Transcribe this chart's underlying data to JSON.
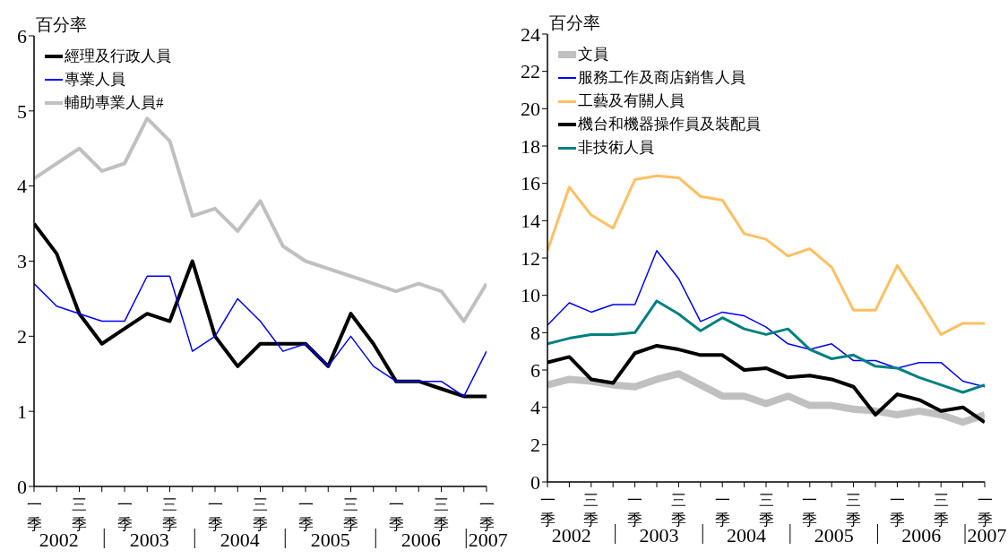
{
  "chart_data": [
    {
      "type": "line",
      "ylabel": "百分率",
      "legend": "top left",
      "ylim": [
        0,
        6
      ],
      "yticks": [
        0,
        1,
        2,
        3,
        4,
        5,
        6
      ],
      "categories": [
        "一季",
        null,
        "三季",
        null,
        "一季",
        null,
        "三季",
        null,
        "一季",
        null,
        "三季",
        null,
        "一季",
        null,
        "三季",
        null,
        "一季",
        null,
        "三季",
        null,
        "一季"
      ],
      "annotations": [
        "2002",
        "2003",
        "2004",
        "2005",
        "2006",
        "2007"
      ],
      "series": [
        {
          "name": "經理及行政人員",
          "color": "#000000",
          "values": [
            3.5,
            3.1,
            2.3,
            1.9,
            2.1,
            2.3,
            2.2,
            3.0,
            2.0,
            1.6,
            1.9,
            1.9,
            1.9,
            1.6,
            2.3,
            1.9,
            1.4,
            1.4,
            1.3,
            1.2,
            1.2
          ]
        },
        {
          "name": "專業人員",
          "color": "#0000ff",
          "values": [
            2.7,
            2.4,
            2.3,
            2.2,
            2.2,
            2.8,
            2.8,
            1.8,
            2.0,
            2.5,
            2.2,
            1.8,
            1.9,
            1.6,
            2.0,
            1.6,
            1.4,
            1.4,
            1.4,
            1.2,
            1.8
          ]
        },
        {
          "name": "輔助專業人員#",
          "color": "#c0c0c0",
          "values": [
            4.1,
            4.3,
            4.5,
            4.2,
            4.3,
            4.9,
            4.6,
            3.6,
            3.7,
            3.4,
            3.8,
            3.2,
            3.0,
            2.9,
            2.8,
            2.7,
            2.6,
            2.7,
            2.6,
            2.2,
            2.7
          ]
        }
      ]
    },
    {
      "type": "line",
      "ylabel": "百分率",
      "legend": "top left",
      "ylim": [
        0,
        24
      ],
      "yticks": [
        0,
        2,
        4,
        6,
        8,
        10,
        12,
        14,
        16,
        18,
        20,
        22,
        24
      ],
      "categories": [
        "一季",
        null,
        "三季",
        null,
        "一季",
        null,
        "三季",
        null,
        "一季",
        null,
        "三季",
        null,
        "一季",
        null,
        "三季",
        null,
        "一季",
        null,
        "三季",
        null,
        "一季"
      ],
      "annotations": [
        "2002",
        "2003",
        "2004",
        "2005",
        "2006",
        "2007"
      ],
      "series": [
        {
          "name": "文員",
          "color": "#c0c0c0",
          "values": [
            5.2,
            5.5,
            5.4,
            5.2,
            5.1,
            5.5,
            5.8,
            5.2,
            4.6,
            4.6,
            4.2,
            4.6,
            4.1,
            4.1,
            3.9,
            3.8,
            3.6,
            3.8,
            3.6,
            3.2,
            3.6
          ]
        },
        {
          "name": "服務工作及商店銷售人員",
          "color": "#0000ff",
          "values": [
            8.4,
            9.6,
            9.1,
            9.5,
            9.5,
            12.4,
            10.9,
            8.6,
            9.1,
            8.9,
            8.3,
            7.4,
            7.1,
            7.4,
            6.5,
            6.5,
            6.1,
            6.4,
            6.4,
            5.4,
            5.1
          ]
        },
        {
          "name": "工藝及有關人員",
          "color": "#ffbf60",
          "values": [
            12.4,
            15.8,
            14.3,
            13.6,
            16.2,
            16.4,
            16.3,
            15.3,
            15.1,
            13.3,
            13.0,
            12.1,
            12.5,
            11.5,
            9.2,
            9.2,
            11.6,
            9.8,
            7.9,
            8.5,
            8.5
          ]
        },
        {
          "name": "機台和機器操作員及裝配員",
          "color": "#000000",
          "values": [
            6.4,
            6.7,
            5.5,
            5.3,
            6.9,
            7.3,
            7.1,
            6.8,
            6.8,
            6.0,
            6.1,
            5.6,
            5.7,
            5.5,
            5.1,
            3.6,
            4.7,
            4.4,
            3.8,
            4.0,
            3.2
          ]
        },
        {
          "name": "非技術人員",
          "color": "#008080",
          "values": [
            7.4,
            7.7,
            7.9,
            7.9,
            8.0,
            9.7,
            9.0,
            8.1,
            8.8,
            8.2,
            7.9,
            8.2,
            7.1,
            6.6,
            6.8,
            6.2,
            6.1,
            5.6,
            5.2,
            4.8,
            5.2
          ]
        }
      ]
    }
  ]
}
